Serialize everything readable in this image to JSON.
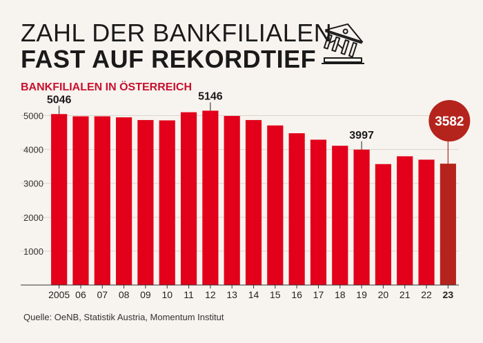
{
  "title_line1": "ZAHL DER BANKFILIALEN",
  "title_line2": "FAST AUF REKORDTIEF",
  "icon": "bank-building-icon",
  "source": "Quelle: OeNB, Statistik Austria, Momentum Institut",
  "colors": {
    "bar": "#e2001a",
    "highlight": "#b5241c",
    "accent_text": "#c8102e"
  },
  "chart_data": {
    "type": "bar",
    "title": "BANKFILIALEN IN ÖSTERREICH",
    "categories": [
      "2005",
      "06",
      "07",
      "08",
      "09",
      "10",
      "11",
      "12",
      "13",
      "14",
      "15",
      "16",
      "17",
      "18",
      "19",
      "20",
      "21",
      "22",
      "23"
    ],
    "values": [
      5046,
      4980,
      4980,
      4950,
      4870,
      4860,
      5100,
      5146,
      4990,
      4870,
      4710,
      4480,
      4290,
      4110,
      3997,
      3570,
      3800,
      3700,
      3582
    ],
    "data_labels": [
      {
        "index": 0,
        "text": "5046"
      },
      {
        "index": 7,
        "text": "5146"
      },
      {
        "index": 14,
        "text": "3997"
      },
      {
        "index": 18,
        "text": "3582"
      }
    ],
    "highlight_index": 18,
    "yticks": [
      1000,
      2000,
      3000,
      4000,
      5000
    ],
    "ytick_labels": [
      "1000",
      "2000",
      "3000",
      "4000",
      "5000"
    ],
    "ylim": [
      0,
      5500
    ],
    "grid": true,
    "xlabel": "",
    "ylabel": ""
  }
}
